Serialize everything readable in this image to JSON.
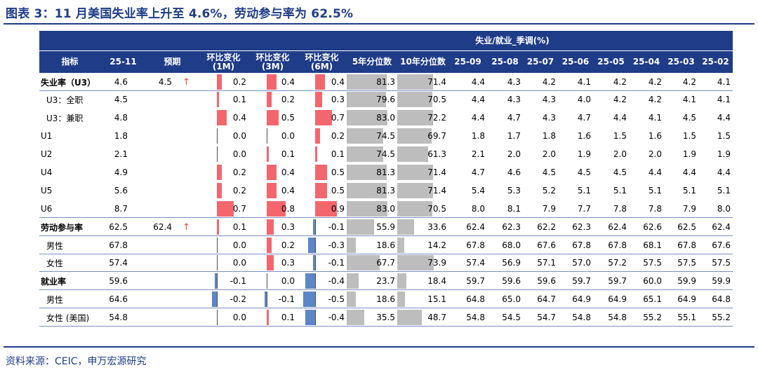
{
  "title": "图表 3：11 月美国失业率上升至 4.6%，劳动参与率为 62.5%",
  "group_header": "失业/就业_季调(%)",
  "columns": [
    "指标",
    "25-11",
    "预期",
    "环比变化\n(1M)",
    "环比变化\n(3M)",
    "环比变化\n(6M)",
    "5年分位数",
    "10年分位数",
    "25-09",
    "25-08",
    "25-07",
    "25-06",
    "25-05",
    "25-04",
    "25-03",
    "25-02"
  ],
  "arrow_glyph": "↑",
  "source": "资料来源：CEIC，申万宏源研究",
  "colors": {
    "header_bg": "#1f3c88",
    "pos_bar": "#f4666e",
    "neg_bar": "#5b86c9",
    "pct_bar": "#bdbdbd"
  },
  "rows": [
    {
      "name": "失业率（U3）",
      "bold": true,
      "indent": 0,
      "val": "4.6",
      "exp": "4.5",
      "arrow": true,
      "m1": "0.2",
      "m3": "0.4",
      "m6": "0.4",
      "p5": "81.3",
      "p10": "71.4",
      "hist": [
        "4.4",
        "4.3",
        "4.2",
        "4.1",
        "4.2",
        "4.2",
        "4.2",
        "4.1"
      ],
      "sep": true
    },
    {
      "name": "U3：全职",
      "bold": false,
      "indent": 1,
      "val": "4.5",
      "exp": "",
      "arrow": false,
      "m1": "0.1",
      "m3": "0.2",
      "m6": "0.3",
      "p5": "79.6",
      "p10": "70.5",
      "hist": [
        "4.4",
        "4.3",
        "4.3",
        "4.0",
        "4.2",
        "4.2",
        "4.1",
        "4.1"
      ],
      "sep": false
    },
    {
      "name": "U3：兼职",
      "bold": false,
      "indent": 1,
      "val": "4.8",
      "exp": "",
      "arrow": false,
      "m1": "0.4",
      "m3": "0.5",
      "m6": "0.7",
      "p5": "83.0",
      "p10": "72.2",
      "hist": [
        "4.4",
        "4.7",
        "4.3",
        "4.7",
        "4.4",
        "4.1",
        "4.5",
        "4.4"
      ],
      "sep": false
    },
    {
      "name": "U1",
      "bold": false,
      "indent": 0,
      "val": "1.8",
      "exp": "",
      "arrow": false,
      "m1": "0.0",
      "m3": "0.0",
      "m6": "0.2",
      "p5": "74.5",
      "p10": "69.7",
      "hist": [
        "1.8",
        "1.7",
        "1.8",
        "1.6",
        "1.5",
        "1.6",
        "1.5",
        "1.5"
      ],
      "sep": false
    },
    {
      "name": "U2",
      "bold": false,
      "indent": 0,
      "val": "2.1",
      "exp": "",
      "arrow": false,
      "m1": "0.0",
      "m3": "0.1",
      "m6": "0.1",
      "p5": "74.5",
      "p10": "61.3",
      "hist": [
        "2.1",
        "2.0",
        "2.0",
        "1.9",
        "2.0",
        "2.0",
        "1.9",
        "1.9"
      ],
      "sep": false
    },
    {
      "name": "U4",
      "bold": false,
      "indent": 0,
      "val": "4.9",
      "exp": "",
      "arrow": false,
      "m1": "0.2",
      "m3": "0.4",
      "m6": "0.5",
      "p5": "81.3",
      "p10": "71.4",
      "hist": [
        "4.7",
        "4.6",
        "4.5",
        "4.5",
        "4.5",
        "4.4",
        "4.4",
        "4.4"
      ],
      "sep": false
    },
    {
      "name": "U5",
      "bold": false,
      "indent": 0,
      "val": "5.6",
      "exp": "",
      "arrow": false,
      "m1": "0.2",
      "m3": "0.4",
      "m6": "0.5",
      "p5": "81.3",
      "p10": "71.4",
      "hist": [
        "5.4",
        "5.3",
        "5.2",
        "5.1",
        "5.1",
        "5.1",
        "5.1",
        "5.1"
      ],
      "sep": false
    },
    {
      "name": "U6",
      "bold": false,
      "indent": 0,
      "val": "8.7",
      "exp": "",
      "arrow": false,
      "m1": "0.7",
      "m3": "0.8",
      "m6": "0.9",
      "p5": "83.0",
      "p10": "70.5",
      "hist": [
        "8.0",
        "8.1",
        "7.9",
        "7.7",
        "7.8",
        "7.8",
        "7.9",
        "8.0"
      ],
      "sep": true
    },
    {
      "name": "劳动参与率",
      "bold": true,
      "indent": 0,
      "val": "62.5",
      "exp": "62.4",
      "arrow": true,
      "m1": "0.1",
      "m3": "0.3",
      "m6": "-0.1",
      "p5": "55.9",
      "p10": "33.6",
      "hist": [
        "62.4",
        "62.3",
        "62.2",
        "62.3",
        "62.4",
        "62.6",
        "62.5",
        "62.4"
      ],
      "sep": true
    },
    {
      "name": "男性",
      "bold": false,
      "indent": 1,
      "val": "67.8",
      "exp": "",
      "arrow": false,
      "m1": "0.0",
      "m3": "0.2",
      "m6": "-0.3",
      "p5": "18.6",
      "p10": "14.2",
      "hist": [
        "67.8",
        "68.0",
        "67.6",
        "67.8",
        "67.8",
        "68.1",
        "67.8",
        "67.6"
      ],
      "sep": true
    },
    {
      "name": "女性",
      "bold": false,
      "indent": 1,
      "val": "57.4",
      "exp": "",
      "arrow": false,
      "m1": "0.0",
      "m3": "0.3",
      "m6": "-0.1",
      "p5": "67.7",
      "p10": "73.9",
      "hist": [
        "57.4",
        "56.9",
        "57.1",
        "57.0",
        "57.2",
        "57.5",
        "57.5",
        "57.5"
      ],
      "sep": true
    },
    {
      "name": "就业率",
      "bold": true,
      "indent": 0,
      "val": "59.6",
      "exp": "",
      "arrow": false,
      "m1": "-0.1",
      "m3": "0.0",
      "m6": "-0.4",
      "p5": "23.7",
      "p10": "18.4",
      "hist": [
        "59.7",
        "59.6",
        "59.6",
        "59.7",
        "59.7",
        "60.0",
        "59.9",
        "59.9"
      ],
      "sep": true
    },
    {
      "name": "男性",
      "bold": false,
      "indent": 1,
      "val": "64.6",
      "exp": "",
      "arrow": false,
      "m1": "-0.2",
      "m3": "-0.1",
      "m6": "-0.5",
      "p5": "18.6",
      "p10": "15.1",
      "hist": [
        "64.8",
        "65.0",
        "64.7",
        "64.9",
        "64.9",
        "65.1",
        "64.9",
        "64.8"
      ],
      "sep": true
    },
    {
      "name": "女性 (美国)",
      "bold": false,
      "indent": 1,
      "val": "54.8",
      "exp": "",
      "arrow": false,
      "m1": "0.0",
      "m3": "0.1",
      "m6": "-0.4",
      "p5": "35.5",
      "p10": "48.7",
      "hist": [
        "54.8",
        "54.5",
        "54.7",
        "54.8",
        "54.8",
        "55.2",
        "55.1",
        "55.2"
      ],
      "sep": true
    }
  ]
}
